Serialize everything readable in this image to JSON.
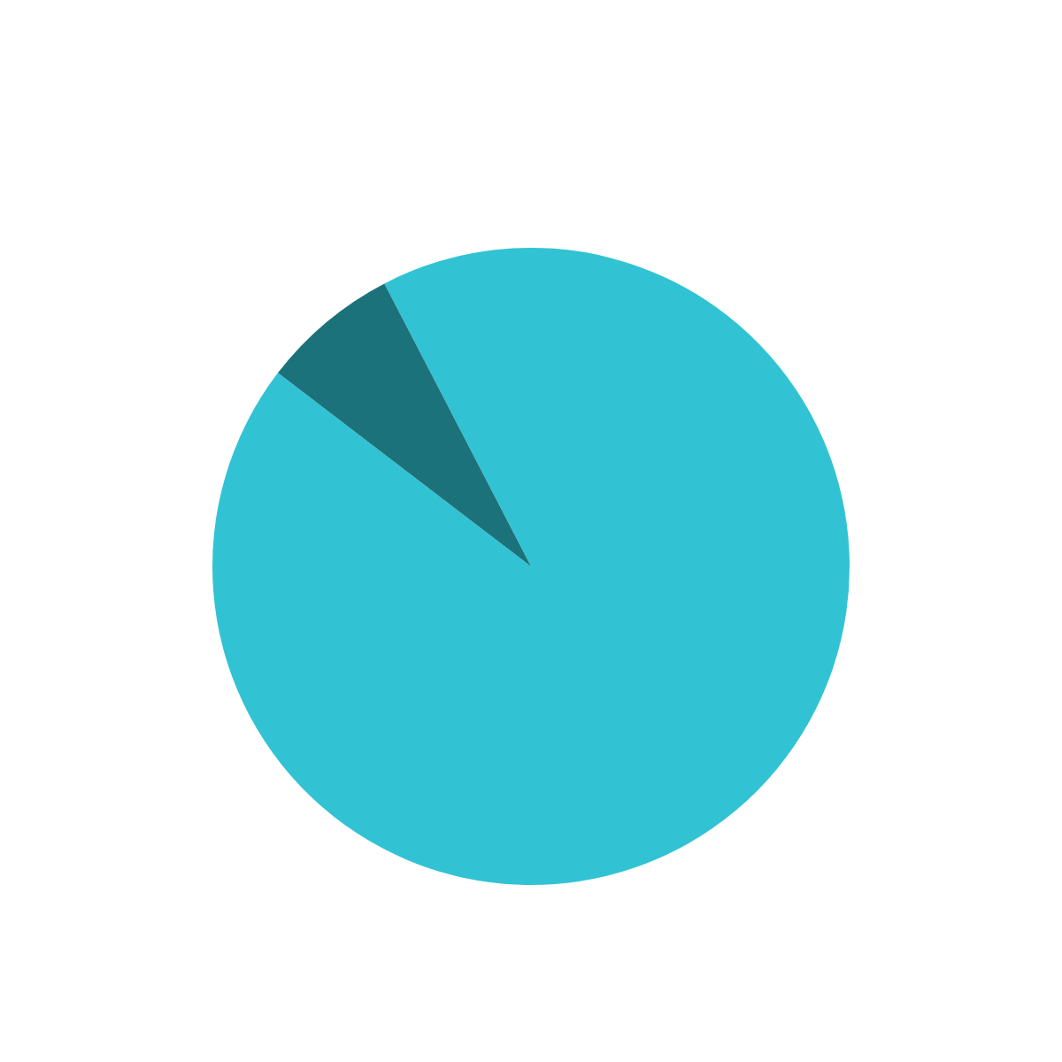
{
  "chart_data": {
    "type": "pie",
    "categories": [
      null,
      null
    ],
    "values": [
      93,
      7
    ],
    "colors": [
      "#31c3d4",
      "#1b727a"
    ],
    "legend": false
  }
}
